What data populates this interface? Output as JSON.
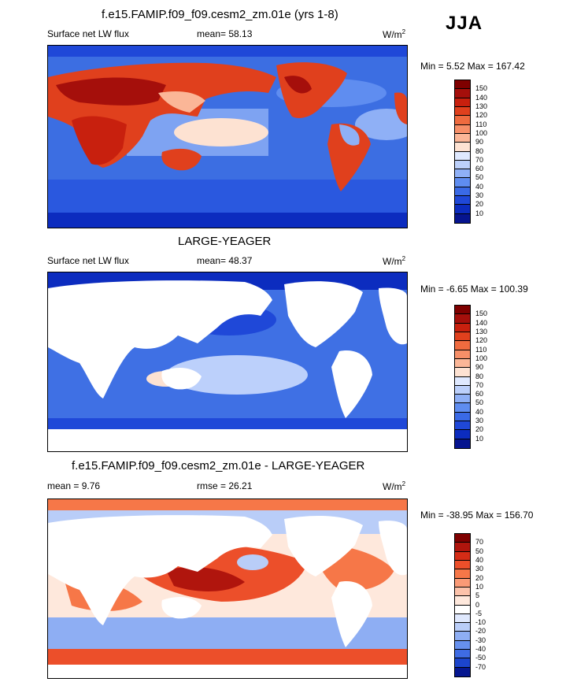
{
  "season": "JJA",
  "panels": [
    {
      "title": "f.e15.FAMIP.f09_f09.cesm2_zm.01e (yrs 1-8)",
      "left_label": "Surface net LW flux",
      "stat_label": "mean=  58.13",
      "units": "W/m",
      "units_sup": "2",
      "minmax": "Min =   5.52 Max = 167.42",
      "colorbar": {
        "ticks": [
          "150",
          "140",
          "130",
          "120",
          "110",
          "100",
          "90",
          "80",
          "70",
          "60",
          "50",
          "40",
          "30",
          "20",
          "10"
        ],
        "colors": [
          "#7f0000",
          "#a50f0b",
          "#c8200e",
          "#e0401d",
          "#ef6b3f",
          "#f78f68",
          "#fbb697",
          "#fde2d2",
          "#dfe9ff",
          "#bcd0fb",
          "#8fb0f6",
          "#5f8df0",
          "#3a6ae6",
          "#1f48d8",
          "#0c2cbf",
          "#06148f"
        ]
      }
    },
    {
      "title": "LARGE-YEAGER",
      "left_label": "Surface net LW flux",
      "stat_label": "mean=  48.37",
      "units": "W/m",
      "units_sup": "2",
      "minmax": "Min =  -6.65 Max = 100.39",
      "colorbar": {
        "ticks": [
          "150",
          "140",
          "130",
          "120",
          "110",
          "100",
          "90",
          "80",
          "70",
          "60",
          "50",
          "40",
          "30",
          "20",
          "10"
        ],
        "colors": [
          "#7f0000",
          "#a50f0b",
          "#c8200e",
          "#e0401d",
          "#ef6b3f",
          "#f78f68",
          "#fbb697",
          "#fde2d2",
          "#dfe9ff",
          "#bcd0fb",
          "#8fb0f6",
          "#5f8df0",
          "#3a6ae6",
          "#1f48d8",
          "#0c2cbf",
          "#06148f"
        ]
      }
    },
    {
      "title": "f.e15.FAMIP.f09_f09.cesm2_zm.01e - LARGE-YEAGER",
      "left_label": "mean =   9.76",
      "stat_label": "rmse =  26.21",
      "units": "W/m",
      "units_sup": "2",
      "minmax": "Min = -38.95 Max = 156.70",
      "colorbar": {
        "ticks": [
          "70",
          "50",
          "40",
          "30",
          "20",
          "10",
          "5",
          "0",
          "-5",
          "-10",
          "-20",
          "-30",
          "-40",
          "-50",
          "-70"
        ],
        "colors": [
          "#7f0000",
          "#b0150d",
          "#d52c16",
          "#ec4f2a",
          "#f67748",
          "#fa9a76",
          "#fcc2aa",
          "#fee8dc",
          "#ffffff",
          "#dfe8fd",
          "#b9cdf8",
          "#8eaef3",
          "#6690ee",
          "#3f6ce4",
          "#1c45cc",
          "#061790"
        ]
      }
    }
  ]
}
